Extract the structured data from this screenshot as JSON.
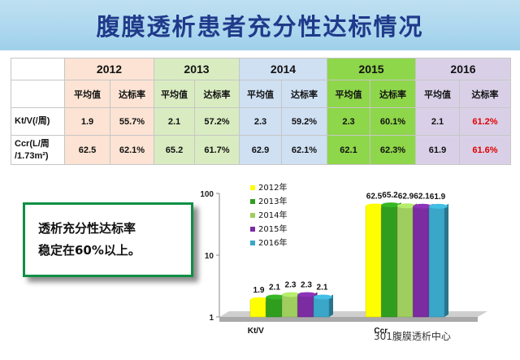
{
  "title": "腹膜透析患者充分性达标情况",
  "table": {
    "years": [
      "2012",
      "2013",
      "2014",
      "2015",
      "2016"
    ],
    "sub_headers": [
      "平均值",
      "达标率"
    ],
    "rows": [
      {
        "label_line1": "Kt/V(/周)",
        "label_line2": "",
        "cells": [
          "1.9",
          "55.7%",
          "2.1",
          "57.2%",
          "2.3",
          "59.2%",
          "2.3",
          "60.1%",
          "2.1",
          "61.2%"
        ]
      },
      {
        "label_line1": "Ccr(L/周",
        "label_line2": "/1.73m²)",
        "cells": [
          "62.5",
          "62.1%",
          "65.2",
          "61.7%",
          "62.9",
          "62.1%",
          "62.1",
          "62.3%",
          "61.9",
          "61.6%"
        ]
      }
    ],
    "highlight_color": "#e00000"
  },
  "callout": {
    "line1": "透析充分性达标率",
    "line2": "稳定在60%以上。"
  },
  "chart_data": {
    "type": "bar",
    "yscale": "log",
    "ylim": [
      1,
      100
    ],
    "yticks": [
      "1",
      "10",
      "100"
    ],
    "categories": [
      "Kt/V",
      "Ccr"
    ],
    "series": [
      {
        "name": "2012年",
        "color": "#ffff00",
        "values": [
          1.9,
          62.5
        ]
      },
      {
        "name": "2013年",
        "color": "#2f9e1f",
        "values": [
          2.1,
          65.2
        ]
      },
      {
        "name": "2014年",
        "color": "#9fce5e",
        "values": [
          2.3,
          62.9
        ]
      },
      {
        "name": "2015年",
        "color": "#7a2ca0",
        "values": [
          2.3,
          62.1
        ]
      },
      {
        "name": "2016年",
        "color": "#3aa6c8",
        "values": [
          2.1,
          61.9
        ]
      }
    ],
    "legend_position": "inside-top-left"
  },
  "watermark": "301腹膜透析中心"
}
